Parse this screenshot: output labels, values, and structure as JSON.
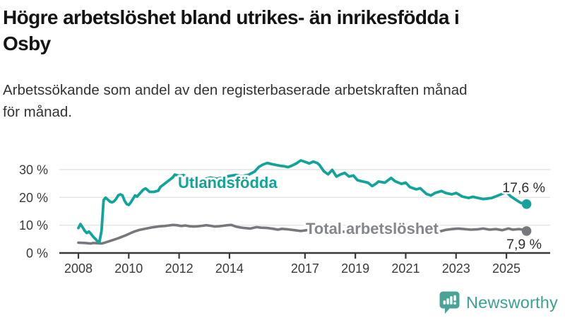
{
  "header": {
    "title_line1": "Högre arbetslöshet bland utrikes- än inrikesfödda i",
    "title_line2": "Osby",
    "subtitle_line1": "Arbetssökande som andel av den registerbaserade arbetskraften månad",
    "subtitle_line2": "för månad."
  },
  "chart_data": {
    "type": "line",
    "title": "Högre arbetslöshet bland utrikes- än inrikesfödda i Osby",
    "xlabel": "",
    "ylabel": "",
    "grid": "horizontal",
    "legend": "inline-series-labels",
    "colors": {
      "grid": "#e4e4e4",
      "axis": "#3a3a3a",
      "tick_text": "#3a3a3a"
    },
    "x_axis": {
      "range": [
        2007.75,
        2026.35
      ],
      "ticks": [
        {
          "v": 2008,
          "label": "2008"
        },
        {
          "v": 2010,
          "label": "2010"
        },
        {
          "v": 2012,
          "label": "2012"
        },
        {
          "v": 2014,
          "label": "2014"
        },
        {
          "v": 2017,
          "label": "2017"
        },
        {
          "v": 2019,
          "label": "2019"
        },
        {
          "v": 2021,
          "label": "2021"
        },
        {
          "v": 2023,
          "label": "2023"
        },
        {
          "v": 2025,
          "label": "2025"
        }
      ]
    },
    "y_axis": {
      "range": [
        0,
        35
      ],
      "unit": "%",
      "ticks": [
        {
          "v": 0,
          "label": "0 %"
        },
        {
          "v": 10,
          "label": "10 %"
        },
        {
          "v": 20,
          "label": "20 %"
        },
        {
          "v": 30,
          "label": "30 %"
        }
      ]
    },
    "series": [
      {
        "name": "Utlandsfödda",
        "color": "#12a49a",
        "label_color": "#12a49a",
        "end_value": 17.6,
        "end_label": "17,6 %",
        "points": [
          [
            2008.0,
            9.0
          ],
          [
            2008.08,
            10.4
          ],
          [
            2008.17,
            9.2
          ],
          [
            2008.25,
            8.0
          ],
          [
            2008.33,
            7.2
          ],
          [
            2008.42,
            7.7
          ],
          [
            2008.5,
            6.9
          ],
          [
            2008.58,
            5.9
          ],
          [
            2008.67,
            5.1
          ],
          [
            2008.75,
            4.3
          ],
          [
            2008.83,
            3.8
          ],
          [
            2008.92,
            8.0
          ],
          [
            2009.0,
            19.0
          ],
          [
            2009.08,
            19.9
          ],
          [
            2009.17,
            19.2
          ],
          [
            2009.25,
            18.5
          ],
          [
            2009.33,
            18.2
          ],
          [
            2009.42,
            18.6
          ],
          [
            2009.5,
            19.5
          ],
          [
            2009.58,
            20.7
          ],
          [
            2009.67,
            21.1
          ],
          [
            2009.75,
            20.7
          ],
          [
            2009.83,
            18.9
          ],
          [
            2009.92,
            17.6
          ],
          [
            2010.0,
            17.3
          ],
          [
            2010.08,
            18.2
          ],
          [
            2010.17,
            19.5
          ],
          [
            2010.25,
            20.7
          ],
          [
            2010.33,
            20.3
          ],
          [
            2010.5,
            22.0
          ],
          [
            2010.58,
            22.8
          ],
          [
            2010.67,
            23.2
          ],
          [
            2010.83,
            22.0
          ],
          [
            2011.0,
            22.0
          ],
          [
            2011.17,
            22.4
          ],
          [
            2011.25,
            23.7
          ],
          [
            2011.42,
            24.9
          ],
          [
            2011.58,
            26.0
          ],
          [
            2011.75,
            27.2
          ],
          [
            2011.83,
            28.2
          ],
          [
            2012.0,
            27.8
          ],
          [
            2012.17,
            28.0
          ],
          [
            2012.33,
            27.3
          ],
          [
            2012.5,
            26.6
          ],
          [
            2012.75,
            26.1
          ],
          [
            2013.0,
            26.6
          ],
          [
            2013.25,
            27.1
          ],
          [
            2013.5,
            26.7
          ],
          [
            2013.75,
            27.2
          ],
          [
            2014.0,
            27.7
          ],
          [
            2014.25,
            28.1
          ],
          [
            2014.5,
            27.6
          ],
          [
            2014.75,
            28.1
          ],
          [
            2015.0,
            29.3
          ],
          [
            2015.17,
            31.0
          ],
          [
            2015.33,
            31.8
          ],
          [
            2015.5,
            32.4
          ],
          [
            2015.67,
            32.0
          ],
          [
            2015.83,
            31.7
          ],
          [
            2016.0,
            31.4
          ],
          [
            2016.17,
            31.2
          ],
          [
            2016.33,
            30.9
          ],
          [
            2016.5,
            31.5
          ],
          [
            2016.67,
            32.3
          ],
          [
            2016.83,
            33.3
          ],
          [
            2017.0,
            32.8
          ],
          [
            2017.17,
            32.2
          ],
          [
            2017.33,
            32.9
          ],
          [
            2017.5,
            32.3
          ],
          [
            2017.58,
            31.6
          ],
          [
            2017.75,
            29.4
          ],
          [
            2017.92,
            28.3
          ],
          [
            2018.08,
            29.9
          ],
          [
            2018.25,
            27.5
          ],
          [
            2018.42,
            28.3
          ],
          [
            2018.58,
            28.8
          ],
          [
            2018.75,
            27.5
          ],
          [
            2018.92,
            27.9
          ],
          [
            2019.08,
            26.2
          ],
          [
            2019.25,
            25.8
          ],
          [
            2019.5,
            25.3
          ],
          [
            2019.67,
            24.1
          ],
          [
            2019.83,
            25.0
          ],
          [
            2019.92,
            25.7
          ],
          [
            2020.17,
            25.3
          ],
          [
            2020.42,
            27.0
          ],
          [
            2020.58,
            25.8
          ],
          [
            2020.83,
            24.9
          ],
          [
            2021.0,
            25.3
          ],
          [
            2021.17,
            23.7
          ],
          [
            2021.42,
            22.9
          ],
          [
            2021.58,
            23.3
          ],
          [
            2021.83,
            21.2
          ],
          [
            2022.0,
            20.7
          ],
          [
            2022.17,
            21.6
          ],
          [
            2022.42,
            22.3
          ],
          [
            2022.58,
            21.6
          ],
          [
            2022.83,
            21.1
          ],
          [
            2023.0,
            21.6
          ],
          [
            2023.25,
            20.3
          ],
          [
            2023.5,
            19.8
          ],
          [
            2023.67,
            20.2
          ],
          [
            2023.92,
            19.7
          ],
          [
            2024.08,
            19.4
          ],
          [
            2024.42,
            19.8
          ],
          [
            2024.67,
            20.7
          ],
          [
            2025.0,
            21.9
          ],
          [
            2025.17,
            20.4
          ],
          [
            2025.42,
            18.9
          ],
          [
            2025.58,
            18.0
          ],
          [
            2025.8,
            17.6
          ]
        ]
      },
      {
        "name": "Total arbetslöshet",
        "color": "#77787d",
        "label_color": "#85868b",
        "end_value": 7.9,
        "end_label": "7,9 %",
        "points": [
          [
            2008.0,
            3.7
          ],
          [
            2008.25,
            3.6
          ],
          [
            2008.5,
            3.4
          ],
          [
            2008.58,
            3.6
          ],
          [
            2008.75,
            3.5
          ],
          [
            2008.92,
            3.4
          ],
          [
            2009.08,
            3.8
          ],
          [
            2009.25,
            4.3
          ],
          [
            2009.42,
            4.8
          ],
          [
            2009.58,
            5.3
          ],
          [
            2009.75,
            5.9
          ],
          [
            2009.92,
            6.5
          ],
          [
            2010.08,
            7.2
          ],
          [
            2010.25,
            7.8
          ],
          [
            2010.42,
            8.3
          ],
          [
            2010.58,
            8.6
          ],
          [
            2010.75,
            8.9
          ],
          [
            2010.92,
            9.2
          ],
          [
            2011.08,
            9.4
          ],
          [
            2011.25,
            9.6
          ],
          [
            2011.42,
            9.7
          ],
          [
            2011.58,
            9.9
          ],
          [
            2011.75,
            10.1
          ],
          [
            2011.92,
            10.0
          ],
          [
            2012.08,
            9.7
          ],
          [
            2012.25,
            9.9
          ],
          [
            2012.42,
            9.6
          ],
          [
            2012.58,
            9.5
          ],
          [
            2012.75,
            9.6
          ],
          [
            2012.92,
            9.8
          ],
          [
            2013.08,
            10.0
          ],
          [
            2013.25,
            9.8
          ],
          [
            2013.42,
            9.5
          ],
          [
            2013.58,
            9.6
          ],
          [
            2013.75,
            9.8
          ],
          [
            2013.92,
            10.0
          ],
          [
            2014.08,
            10.1
          ],
          [
            2014.25,
            9.5
          ],
          [
            2014.42,
            9.2
          ],
          [
            2014.58,
            9.0
          ],
          [
            2014.83,
            8.8
          ],
          [
            2015.08,
            9.3
          ],
          [
            2015.25,
            9.1
          ],
          [
            2015.5,
            9.0
          ],
          [
            2015.75,
            8.7
          ],
          [
            2015.92,
            8.4
          ],
          [
            2016.08,
            8.7
          ],
          [
            2016.33,
            8.5
          ],
          [
            2016.58,
            8.2
          ],
          [
            2016.83,
            7.9
          ],
          [
            2017.08,
            8.2
          ],
          [
            2017.33,
            8.4
          ],
          [
            2017.58,
            8.1
          ],
          [
            2017.83,
            7.9
          ],
          [
            2018.08,
            7.8
          ],
          [
            2018.42,
            7.6
          ],
          [
            2018.75,
            7.7
          ],
          [
            2019.08,
            7.8
          ],
          [
            2019.42,
            8.0
          ],
          [
            2019.75,
            8.3
          ],
          [
            2020.0,
            8.8
          ],
          [
            2020.25,
            9.4
          ],
          [
            2020.5,
            9.2
          ],
          [
            2020.83,
            8.9
          ],
          [
            2021.17,
            8.5
          ],
          [
            2021.5,
            7.9
          ],
          [
            2021.83,
            7.5
          ],
          [
            2022.08,
            7.9
          ],
          [
            2022.33,
            7.7
          ],
          [
            2022.58,
            8.3
          ],
          [
            2022.83,
            8.6
          ],
          [
            2023.08,
            8.8
          ],
          [
            2023.33,
            8.6
          ],
          [
            2023.58,
            8.4
          ],
          [
            2023.83,
            8.5
          ],
          [
            2024.08,
            8.8
          ],
          [
            2024.33,
            8.4
          ],
          [
            2024.58,
            8.6
          ],
          [
            2024.83,
            8.2
          ],
          [
            2025.08,
            8.8
          ],
          [
            2025.25,
            8.4
          ],
          [
            2025.5,
            8.6
          ],
          [
            2025.65,
            8.4
          ],
          [
            2025.8,
            7.9
          ]
        ]
      }
    ]
  },
  "footer": {
    "brand": "Newsworthy",
    "brand_color": "#3ba191",
    "icon": "newsworthy-logo-icon",
    "icon_color": "#4aa495"
  }
}
